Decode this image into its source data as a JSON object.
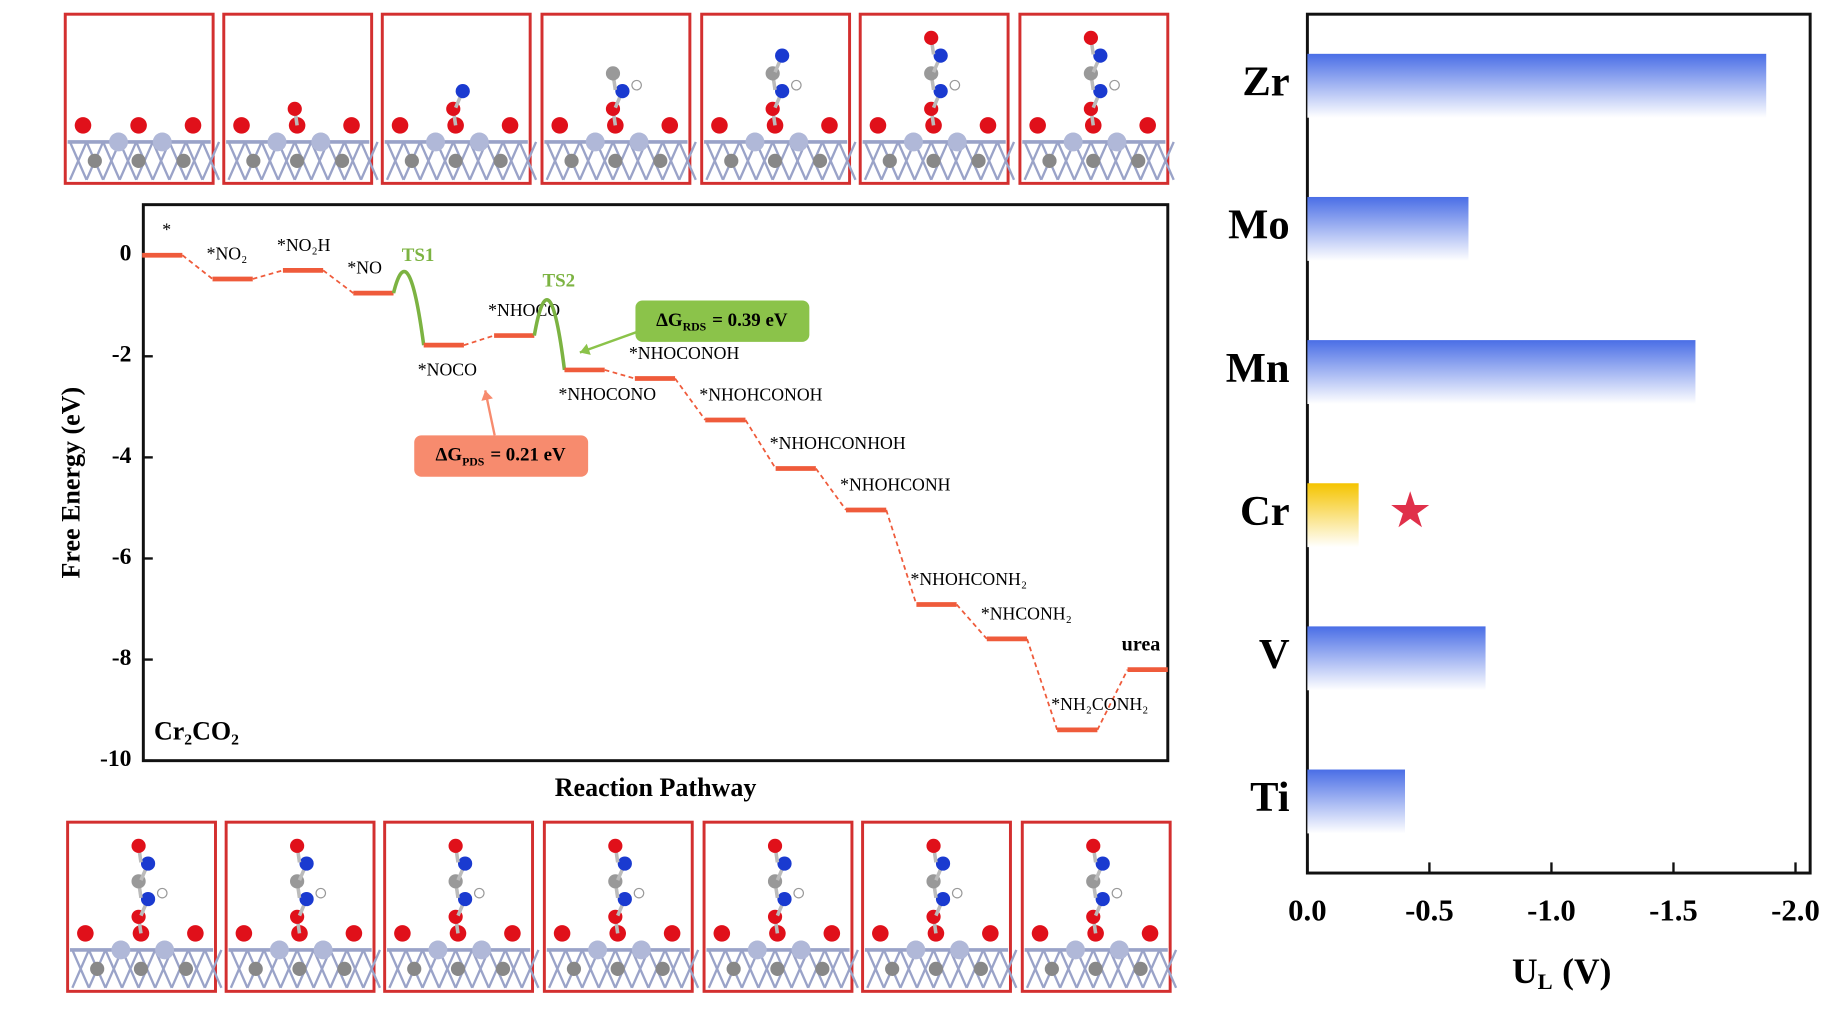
{
  "chart_data": [
    {
      "type": "energy-profile",
      "ylabel": "Free Energy (eV)",
      "xlabel": "Reaction Pathway",
      "label": "Cr₂CO₂",
      "categories": [
        "*",
        "*NO₂",
        "*NO₂H",
        "*NO",
        "TS1",
        "*NOCO",
        "*NHOCO",
        "TS2",
        "*NHOCONO",
        "*NHOCONOH",
        "*NHOHCONOH",
        "*NHOHCONHOH",
        "*NHOHCONH",
        "*NHOHCONH₂",
        "*NHCONH₂",
        "*NH₂CONH₂",
        "urea"
      ],
      "values": [
        0,
        -0.47,
        -0.3,
        -0.75,
        -0.4,
        -1.78,
        -1.59,
        -0.91,
        -2.27,
        -2.44,
        -3.26,
        -4.22,
        -5.04,
        -6.91,
        -7.59,
        -9.39,
        -8.2
      ],
      "color": "#ef5b3b",
      "ts_color": "#7cb342",
      "ylim": [
        -10,
        1.0
      ],
      "yticks": [
        0,
        -2,
        -4,
        -6,
        -8,
        -10
      ],
      "annotations": [
        {
          "symbol": "ΔG",
          "subscript": "PDS",
          "text": "= 0.21 eV",
          "color": "#f78b6e"
        },
        {
          "symbol": "ΔG",
          "subscript": "RDS",
          "text": "= 0.39 eV",
          "color": "#8bc34a"
        }
      ]
    },
    {
      "type": "bar",
      "orientation": "horizontal",
      "categories": [
        "Zr",
        "Mo",
        "Mn",
        "Cr",
        "V",
        "Ti"
      ],
      "values": [
        -1.88,
        -0.66,
        -1.59,
        -0.21,
        -0.73,
        -0.4
      ],
      "colors": [
        "#4a6ee6",
        "#4a6ee6",
        "#4a6ee6",
        "#f5c400",
        "#4a6ee6",
        "#4a6ee6"
      ],
      "xlim": [
        0,
        -2.06
      ],
      "xticks": [
        {
          "value": 0,
          "label": "0.0"
        },
        -0.5,
        {
          "value": -1,
          "label": "-1.0"
        },
        -1.5,
        {
          "value": -2,
          "label": "-2.0"
        }
      ],
      "xlabel": {
        "symbol": "U",
        "subscript": "L",
        "unit": "(V)"
      }
    }
  ]
}
